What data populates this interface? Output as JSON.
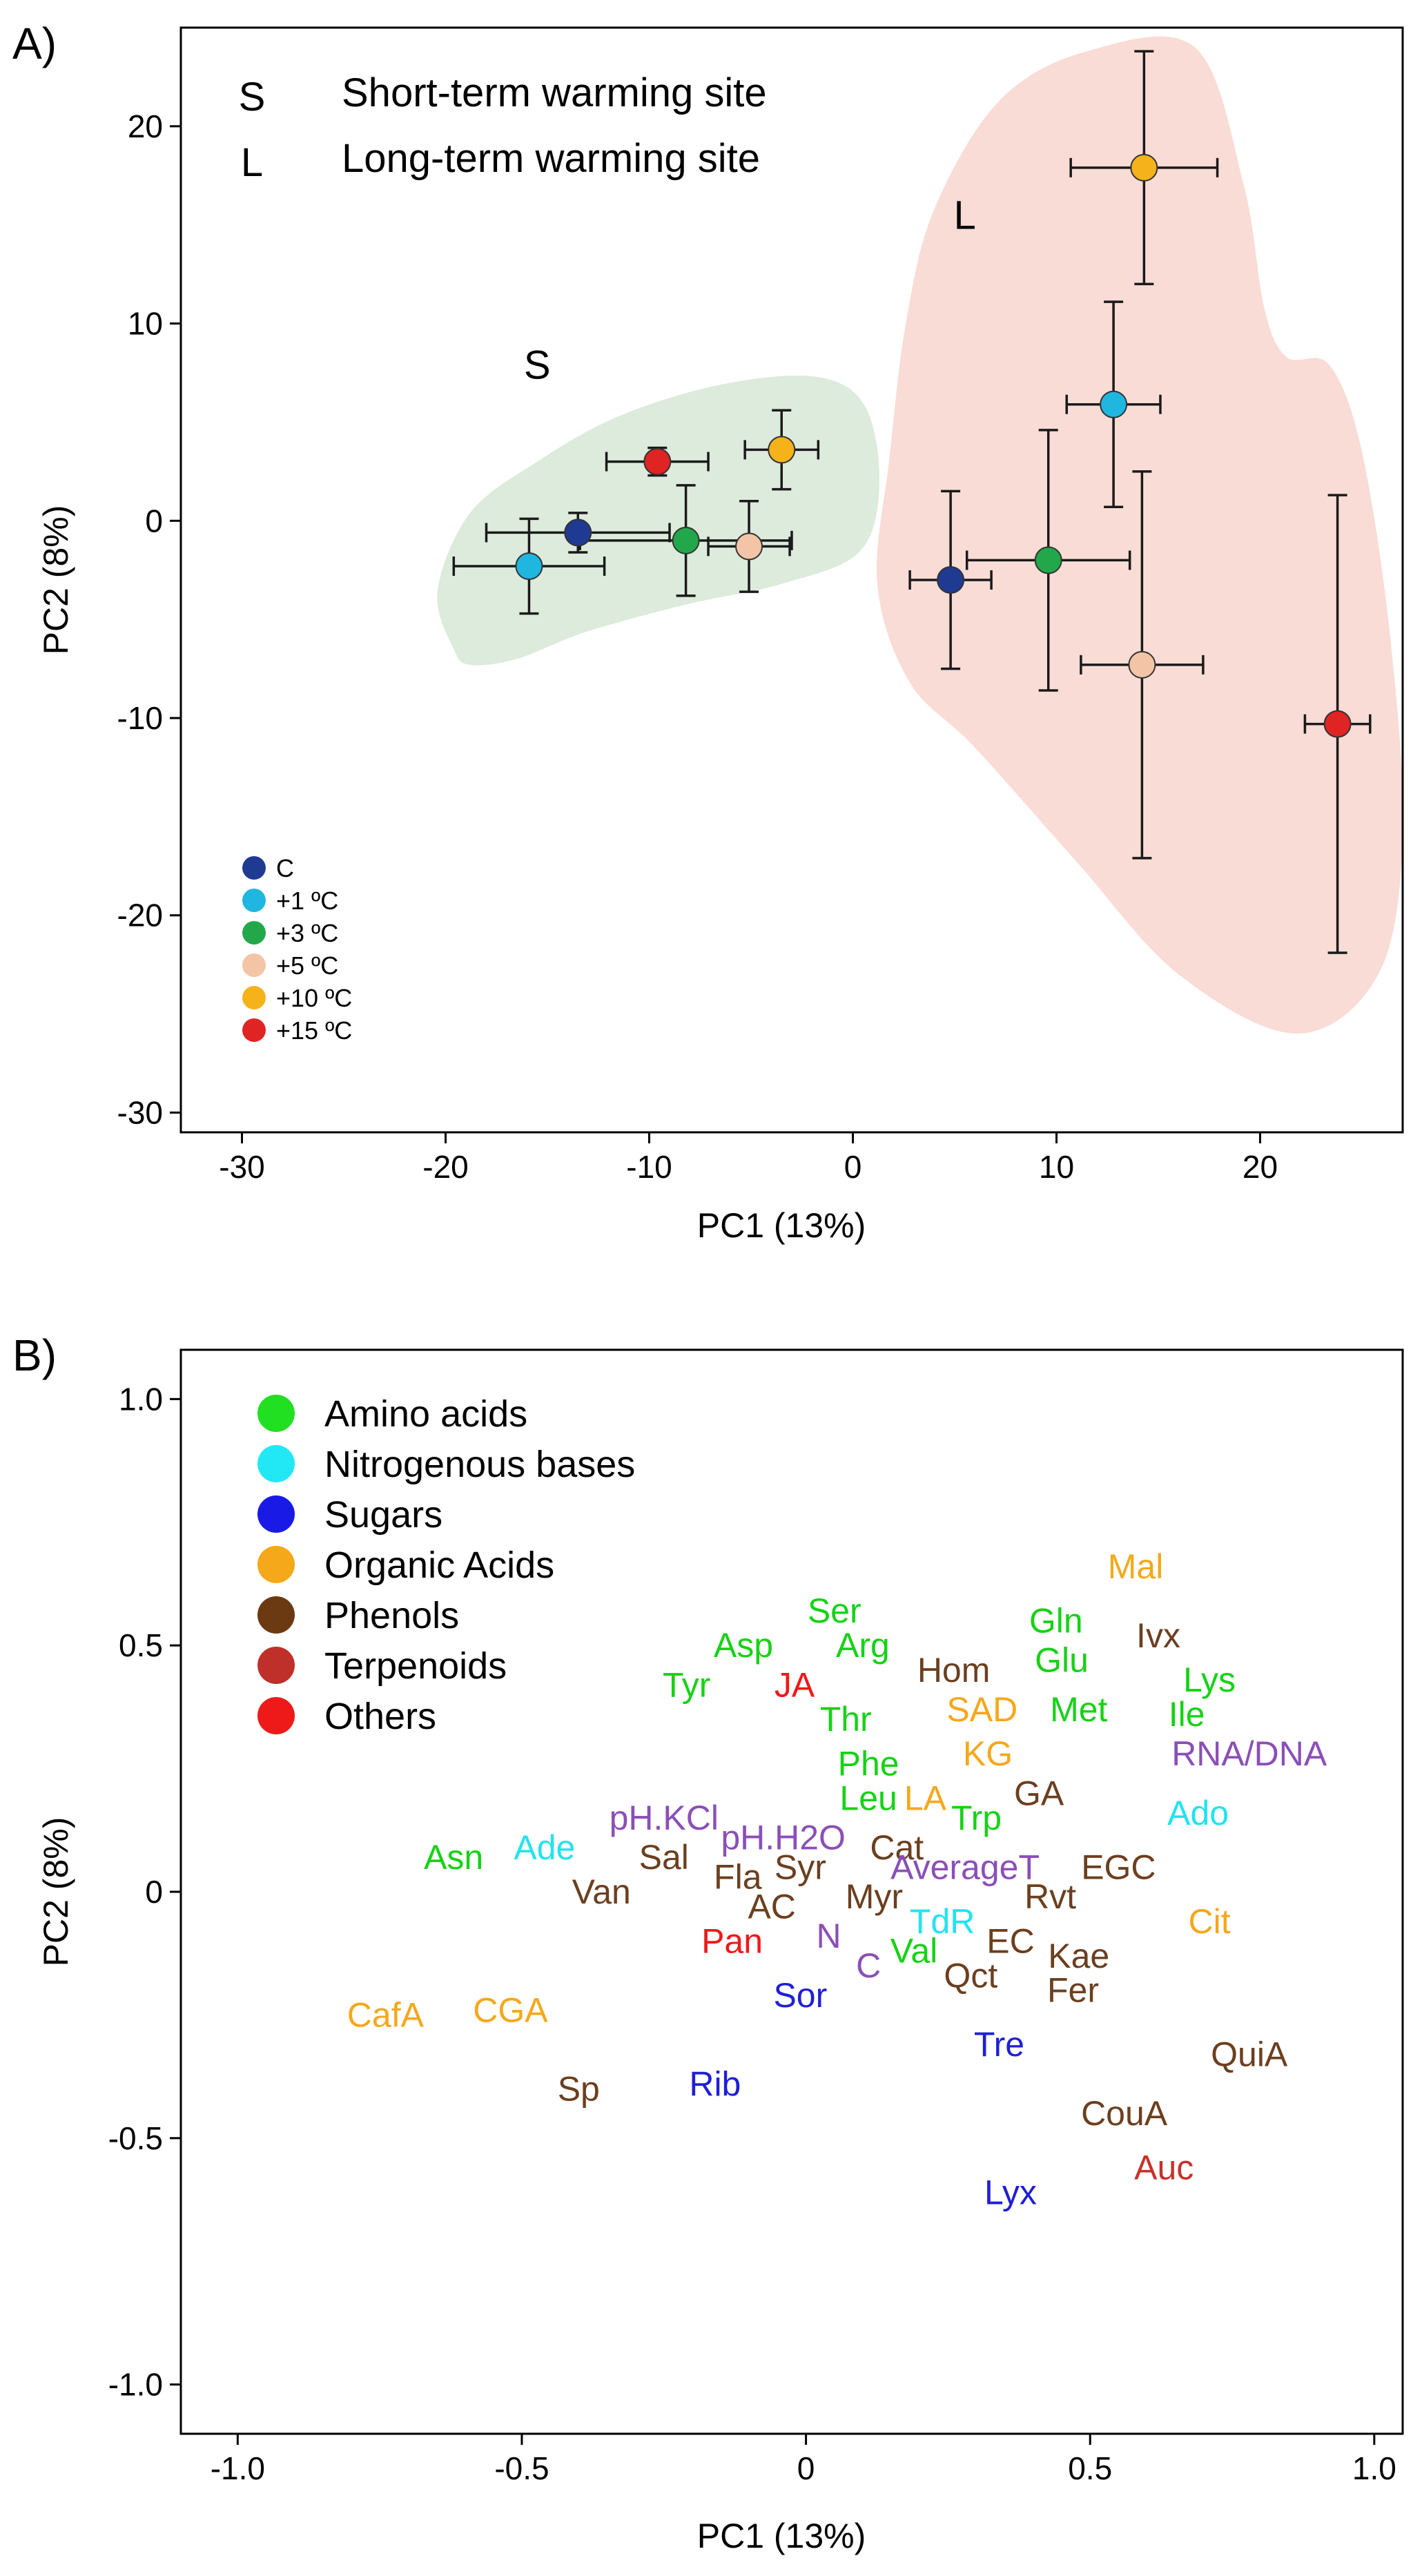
{
  "panels": {
    "a": {
      "label": "A)"
    },
    "b": {
      "label": "B)"
    }
  },
  "chart_data": [
    {
      "type": "scatter",
      "title": "",
      "xlabel": "PC1 (13%)",
      "ylabel": "PC2 (8%)",
      "xlim": [
        -33,
        27
      ],
      "ylim": [
        -31,
        25
      ],
      "xticks": [
        -30,
        -20,
        -10,
        0,
        10,
        20
      ],
      "yticks": [
        -30,
        -20,
        -10,
        0,
        10,
        20
      ],
      "site_legend": [
        {
          "code": "S",
          "label": "Short-term warming site",
          "color": "#5cb85c"
        },
        {
          "code": "L",
          "label": "Long-term warming site",
          "color": "#f0834c"
        }
      ],
      "treatment_legend": [
        {
          "key": "C",
          "label": "C",
          "color": "#1f3a93"
        },
        {
          "key": "+1",
          "label": "+1 ºC",
          "color": "#1fb6e0"
        },
        {
          "key": "+3",
          "label": "+3 ºC",
          "color": "#22a84a"
        },
        {
          "key": "+5",
          "label": "+5 ºC",
          "color": "#f3c4a6"
        },
        {
          "key": "+10",
          "label": "+10 ºC",
          "color": "#f5b21b"
        },
        {
          "key": "+15",
          "label": "+15 ºC",
          "color": "#e02424"
        }
      ],
      "groups": [
        {
          "site": "S",
          "label": "S",
          "label_at": [
            -15.5,
            7.2
          ],
          "fill": "#dcebdc"
        },
        {
          "site": "L",
          "label": "L",
          "label_at": [
            5.5,
            14.8
          ],
          "fill": "#f9dcd6"
        }
      ],
      "series": [
        {
          "site": "S",
          "treatment": "C",
          "x": -13.5,
          "y": -0.6,
          "xerr": 4.5,
          "yerr": 1.0
        },
        {
          "site": "S",
          "treatment": "+1",
          "x": -15.9,
          "y": -2.3,
          "xerr": 3.7,
          "yerr": 2.4
        },
        {
          "site": "S",
          "treatment": "+3",
          "x": -8.2,
          "y": -1.0,
          "xerr": 5.2,
          "yerr": 2.8
        },
        {
          "site": "S",
          "treatment": "+5",
          "x": -5.1,
          "y": -1.3,
          "xerr": 2.0,
          "yerr": 2.3
        },
        {
          "site": "S",
          "treatment": "+10",
          "x": -3.5,
          "y": 3.6,
          "xerr": 1.8,
          "yerr": 2.0
        },
        {
          "site": "S",
          "treatment": "+15",
          "x": -9.6,
          "y": 3.0,
          "xerr": 2.5,
          "yerr": 0.7
        },
        {
          "site": "L",
          "treatment": "C",
          "x": 4.8,
          "y": -3.0,
          "xerr": 2.0,
          "yerr": 4.5
        },
        {
          "site": "L",
          "treatment": "+1",
          "x": 12.8,
          "y": 5.9,
          "xerr": 2.3,
          "yerr": 5.2
        },
        {
          "site": "L",
          "treatment": "+3",
          "x": 9.6,
          "y": -2.0,
          "xerr": 4.0,
          "yerr": 6.6
        },
        {
          "site": "L",
          "treatment": "+5",
          "x": 14.2,
          "y": -7.3,
          "xerr": 3.0,
          "yerr": 9.8
        },
        {
          "site": "L",
          "treatment": "+10",
          "x": 14.3,
          "y": 17.9,
          "xerr": 3.6,
          "yerr": 5.9
        },
        {
          "site": "L",
          "treatment": "+15",
          "x": 23.8,
          "y": -10.3,
          "xerr": 1.6,
          "yerr": 11.6
        }
      ]
    },
    {
      "type": "scatter",
      "title": "",
      "xlabel": "PC1 (13%)",
      "ylabel": "PC2 (8%)",
      "xlim": [
        -1.1,
        1.05
      ],
      "ylim": [
        -1.1,
        1.1
      ],
      "xticks": [
        "-1.0",
        "-0.5",
        "0",
        "0.5",
        "1.0"
      ],
      "yticks": [
        "-1.0",
        "-0.5",
        "0",
        "0.5",
        "1.0"
      ],
      "legend": [
        {
          "category": "amino",
          "label": "Amino acids",
          "color": "#21e021"
        },
        {
          "category": "nbase",
          "label": "Nitrogenous bases",
          "color": "#22e8f5"
        },
        {
          "category": "sugar",
          "label": "Sugars",
          "color": "#1a1ae6"
        },
        {
          "category": "organic",
          "label": "Organic Acids",
          "color": "#f5a81a"
        },
        {
          "category": "phenol",
          "label": "Phenols",
          "color": "#6b3a12"
        },
        {
          "category": "terpenoid",
          "label": "Terpenoids",
          "color": "#c0302a"
        },
        {
          "category": "other",
          "label": "Others",
          "color": "#ee1a1a"
        }
      ],
      "category_colors": {
        "amino": "#16d216",
        "nbase": "#22e3f0",
        "sugar": "#1f1fd6",
        "organic": "#f5a81a",
        "phenol": "#6b3f1f",
        "terpenoid": "#c8302a",
        "other": "#ee1a1a",
        "soil": "#8a4fb8"
      },
      "points": [
        {
          "label": "Mal",
          "x": 0.58,
          "y": 0.66,
          "category": "organic"
        },
        {
          "label": "Ivx",
          "x": 0.62,
          "y": 0.52,
          "category": "phenol"
        },
        {
          "label": "Gln",
          "x": 0.44,
          "y": 0.55,
          "category": "amino"
        },
        {
          "label": "Glu",
          "x": 0.45,
          "y": 0.47,
          "category": "amino"
        },
        {
          "label": "Lys",
          "x": 0.71,
          "y": 0.43,
          "category": "amino"
        },
        {
          "label": "Ile",
          "x": 0.67,
          "y": 0.36,
          "category": "amino"
        },
        {
          "label": "Met",
          "x": 0.48,
          "y": 0.37,
          "category": "amino"
        },
        {
          "label": "Ser",
          "x": 0.05,
          "y": 0.57,
          "category": "amino"
        },
        {
          "label": "Arg",
          "x": 0.1,
          "y": 0.5,
          "category": "amino"
        },
        {
          "label": "Asp",
          "x": -0.11,
          "y": 0.5,
          "category": "amino"
        },
        {
          "label": "Tyr",
          "x": -0.21,
          "y": 0.42,
          "category": "amino"
        },
        {
          "label": "JA",
          "x": -0.02,
          "y": 0.42,
          "category": "other"
        },
        {
          "label": "Thr",
          "x": 0.07,
          "y": 0.35,
          "category": "amino"
        },
        {
          "label": "Hom",
          "x": 0.26,
          "y": 0.45,
          "category": "phenol"
        },
        {
          "label": "SAD",
          "x": 0.31,
          "y": 0.37,
          "category": "organic"
        },
        {
          "label": "KG",
          "x": 0.32,
          "y": 0.28,
          "category": "organic"
        },
        {
          "label": "RNA/DNA",
          "x": 0.78,
          "y": 0.28,
          "category": "soil"
        },
        {
          "label": "Phe",
          "x": 0.11,
          "y": 0.26,
          "category": "amino"
        },
        {
          "label": "Leu",
          "x": 0.11,
          "y": 0.19,
          "category": "amino"
        },
        {
          "label": "LA",
          "x": 0.21,
          "y": 0.19,
          "category": "organic"
        },
        {
          "label": "Trp",
          "x": 0.3,
          "y": 0.15,
          "category": "amino"
        },
        {
          "label": "GA",
          "x": 0.41,
          "y": 0.2,
          "category": "phenol"
        },
        {
          "label": "Ado",
          "x": 0.69,
          "y": 0.16,
          "category": "nbase"
        },
        {
          "label": "pH.KCl",
          "x": -0.25,
          "y": 0.15,
          "category": "soil"
        },
        {
          "label": "pH.H2O",
          "x": -0.04,
          "y": 0.11,
          "category": "soil"
        },
        {
          "label": "Cat",
          "x": 0.16,
          "y": 0.09,
          "category": "phenol"
        },
        {
          "label": "Asn",
          "x": -0.62,
          "y": 0.07,
          "category": "amino"
        },
        {
          "label": "Ade",
          "x": -0.46,
          "y": 0.09,
          "category": "nbase"
        },
        {
          "label": "Sal",
          "x": -0.25,
          "y": 0.07,
          "category": "phenol"
        },
        {
          "label": "Syr",
          "x": -0.01,
          "y": 0.05,
          "category": "phenol"
        },
        {
          "label": "AverageT",
          "x": 0.28,
          "y": 0.05,
          "category": "soil"
        },
        {
          "label": "EGC",
          "x": 0.55,
          "y": 0.05,
          "category": "phenol"
        },
        {
          "label": "Van",
          "x": -0.36,
          "y": 0.0,
          "category": "phenol"
        },
        {
          "label": "Fla",
          "x": -0.12,
          "y": 0.03,
          "category": "phenol"
        },
        {
          "label": "Rvt",
          "x": 0.43,
          "y": -0.01,
          "category": "phenol"
        },
        {
          "label": "Myr",
          "x": 0.12,
          "y": -0.01,
          "category": "phenol"
        },
        {
          "label": "AC",
          "x": -0.06,
          "y": -0.03,
          "category": "phenol"
        },
        {
          "label": "Cit",
          "x": 0.71,
          "y": -0.06,
          "category": "organic"
        },
        {
          "label": "Pan",
          "x": -0.13,
          "y": -0.1,
          "category": "other"
        },
        {
          "label": "N",
          "x": 0.04,
          "y": -0.09,
          "category": "soil"
        },
        {
          "label": "TdR",
          "x": 0.24,
          "y": -0.06,
          "category": "nbase"
        },
        {
          "label": "EC",
          "x": 0.36,
          "y": -0.1,
          "category": "phenol"
        },
        {
          "label": "Kae",
          "x": 0.48,
          "y": -0.13,
          "category": "phenol"
        },
        {
          "label": "C",
          "x": 0.11,
          "y": -0.15,
          "category": "soil"
        },
        {
          "label": "Val",
          "x": 0.19,
          "y": -0.12,
          "category": "amino"
        },
        {
          "label": "Qct",
          "x": 0.29,
          "y": -0.17,
          "category": "phenol"
        },
        {
          "label": "Fer",
          "x": 0.47,
          "y": -0.2,
          "category": "phenol"
        },
        {
          "label": "Sor",
          "x": -0.01,
          "y": -0.21,
          "category": "sugar"
        },
        {
          "label": "CafA",
          "x": -0.74,
          "y": -0.25,
          "category": "organic"
        },
        {
          "label": "CGA",
          "x": -0.52,
          "y": -0.24,
          "category": "organic"
        },
        {
          "label": "Tre",
          "x": 0.34,
          "y": -0.31,
          "category": "sugar"
        },
        {
          "label": "QuiA",
          "x": 0.78,
          "y": -0.33,
          "category": "phenol"
        },
        {
          "label": "Sp",
          "x": -0.4,
          "y": -0.4,
          "category": "phenol"
        },
        {
          "label": "Rib",
          "x": -0.16,
          "y": -0.39,
          "category": "sugar"
        },
        {
          "label": "CouA",
          "x": 0.56,
          "y": -0.45,
          "category": "phenol"
        },
        {
          "label": "Auc",
          "x": 0.63,
          "y": -0.56,
          "category": "terpenoid"
        },
        {
          "label": "Lyx",
          "x": 0.36,
          "y": -0.61,
          "category": "sugar"
        }
      ]
    }
  ]
}
